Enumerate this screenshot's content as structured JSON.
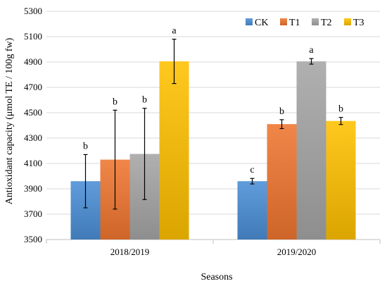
{
  "chart_data": {
    "type": "bar",
    "title": "",
    "xlabel": "Seasons",
    "ylabel": "Antioxidant capacity  (μmol TE / 100g fw)",
    "ylim": [
      3500,
      5300
    ],
    "yticks": [
      3500,
      3700,
      3900,
      4100,
      4300,
      4500,
      4700,
      4900,
      5100,
      5300
    ],
    "grid": "horizontal",
    "legend_position": "top-right",
    "categories": [
      "2018/2019",
      "2019/2020"
    ],
    "series": [
      {
        "name": "CK",
        "color": "#4a8fd6",
        "values": [
          3960,
          3960
        ],
        "errors": [
          210,
          22
        ],
        "labels": [
          "b",
          "c"
        ]
      },
      {
        "name": "T1",
        "color": "#ef7530",
        "values": [
          4130,
          4410
        ],
        "errors": [
          390,
          35
        ],
        "labels": [
          "b",
          "b"
        ]
      },
      {
        "name": "T2",
        "color": "#a5a5a5",
        "values": [
          4175,
          4905
        ],
        "errors": [
          360,
          22
        ],
        "labels": [
          "b",
          "a"
        ]
      },
      {
        "name": "T3",
        "color": "#ffc000",
        "values": [
          4905,
          4435
        ],
        "errors": [
          175,
          28
        ],
        "labels": [
          "a",
          "b"
        ]
      }
    ]
  }
}
